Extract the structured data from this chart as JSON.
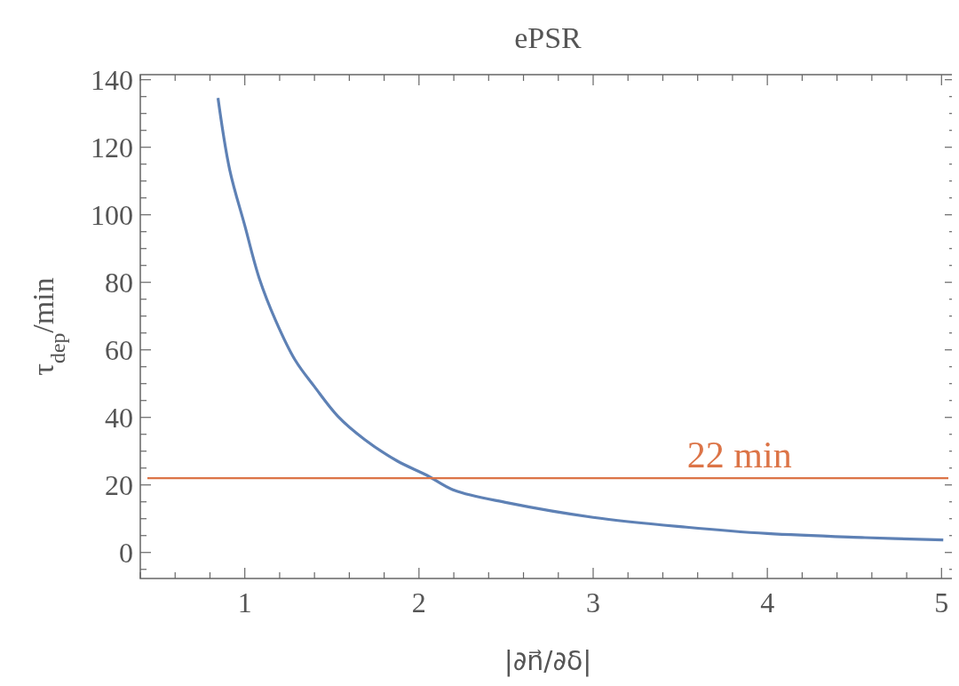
{
  "chart_data": {
    "type": "line",
    "title": "ePSR",
    "xlabel": "|∂n⃗/∂δ|",
    "ylabel": "τ$_{dep}$/min",
    "xlim": [
      0.4,
      5.08
    ],
    "ylim": [
      -7.7,
      141.5
    ],
    "xticks": [
      {
        "value": 0.4,
        "label": null
      },
      {
        "value": 0.6,
        "label": null
      },
      {
        "value": 0.8,
        "label": null
      },
      1,
      {
        "value": 1.2,
        "label": null
      },
      {
        "value": 1.4,
        "label": null
      },
      {
        "value": 1.6,
        "label": null
      },
      {
        "value": 1.8,
        "label": null
      },
      2,
      {
        "value": 2.2,
        "label": null
      },
      {
        "value": 2.4,
        "label": null
      },
      {
        "value": 2.6,
        "label": null
      },
      {
        "value": 2.8,
        "label": null
      },
      3,
      {
        "value": 3.2,
        "label": null
      },
      {
        "value": 3.4,
        "label": null
      },
      {
        "value": 3.6,
        "label": null
      },
      {
        "value": 3.8,
        "label": null
      },
      4,
      {
        "value": 4.2,
        "label": null
      },
      {
        "value": 4.4,
        "label": null
      },
      {
        "value": 4.6,
        "label": null
      },
      {
        "value": 4.8,
        "label": null
      },
      5
    ],
    "yticks": [
      {
        "value": -5,
        "label": null
      },
      0,
      {
        "value": 5,
        "label": null
      },
      {
        "value": 10,
        "label": null
      },
      {
        "value": 15,
        "label": null
      },
      20,
      {
        "value": 25,
        "label": null
      },
      {
        "value": 30,
        "label": null
      },
      {
        "value": 35,
        "label": null
      },
      40,
      {
        "value": 45,
        "label": null
      },
      {
        "value": 50,
        "label": null
      },
      {
        "value": 55,
        "label": null
      },
      60,
      {
        "value": 65,
        "label": null
      },
      {
        "value": 70,
        "label": null
      },
      {
        "value": 75,
        "label": null
      },
      80,
      {
        "value": 85,
        "label": null
      },
      {
        "value": 90,
        "label": null
      },
      {
        "value": 95,
        "label": null
      },
      100,
      {
        "value": 105,
        "label": null
      },
      {
        "value": 110,
        "label": null
      },
      {
        "value": 115,
        "label": null
      },
      120,
      {
        "value": 125,
        "label": null
      },
      {
        "value": 130,
        "label": null
      },
      {
        "value": 135,
        "label": null
      },
      140
    ],
    "grid": false,
    "marker": "none",
    "line_style": "solid",
    "series": [
      {
        "color": "#5e81b5",
        "x": [
          0.846,
          0.913,
          1.0,
          1.083,
          1.178,
          1.29,
          1.4,
          1.535,
          1.687,
          1.875,
          2.044,
          2.203,
          2.51,
          3.0,
          3.535,
          4.0,
          4.56,
          5.01
        ],
        "values": [
          134.6,
          113.4,
          96.8,
          81.2,
          68.6,
          56.9,
          49.1,
          40.3,
          33.5,
          27.1,
          22.9,
          18.4,
          14.7,
          10.4,
          7.5,
          5.6,
          4.4,
          3.7
        ]
      }
    ],
    "ref_lines": [
      {
        "axis": "y",
        "value": 22,
        "label": "22 min",
        "color": "#dc7447"
      }
    ]
  }
}
